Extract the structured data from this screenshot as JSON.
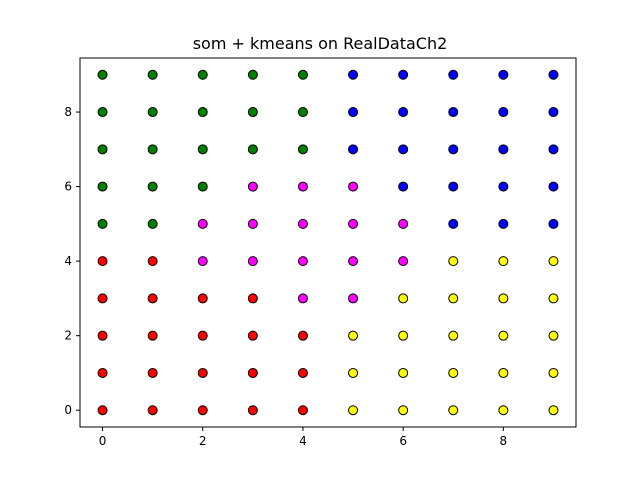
{
  "chart_data": {
    "type": "scatter",
    "title": "som + kmeans on RealDataCh2",
    "xlabel": "",
    "ylabel": "",
    "xlim": [
      -0.45,
      9.45
    ],
    "ylim": [
      -0.45,
      9.45
    ],
    "xticks": [
      0,
      2,
      4,
      6,
      8
    ],
    "yticks": [
      0,
      2,
      4,
      6,
      8
    ],
    "grid": false,
    "legend": "none",
    "colors": {
      "green": "#008000",
      "blue": "#0000ff",
      "magenta": "#ff00ff",
      "red": "#ff0000",
      "yellow": "#ffff00"
    },
    "grid_colors": [
      [
        "red",
        "red",
        "red",
        "red",
        "red",
        "yellow",
        "yellow",
        "yellow",
        "yellow",
        "yellow"
      ],
      [
        "red",
        "red",
        "red",
        "red",
        "red",
        "yellow",
        "yellow",
        "yellow",
        "yellow",
        "yellow"
      ],
      [
        "red",
        "red",
        "red",
        "red",
        "red",
        "yellow",
        "yellow",
        "yellow",
        "yellow",
        "yellow"
      ],
      [
        "red",
        "red",
        "red",
        "red",
        "magenta",
        "magenta",
        "yellow",
        "yellow",
        "yellow",
        "yellow"
      ],
      [
        "red",
        "red",
        "magenta",
        "magenta",
        "magenta",
        "magenta",
        "magenta",
        "yellow",
        "yellow",
        "yellow"
      ],
      [
        "green",
        "green",
        "magenta",
        "magenta",
        "magenta",
        "magenta",
        "magenta",
        "blue",
        "blue",
        "blue"
      ],
      [
        "green",
        "green",
        "green",
        "magenta",
        "magenta",
        "magenta",
        "blue",
        "blue",
        "blue",
        "blue"
      ],
      [
        "green",
        "green",
        "green",
        "green",
        "green",
        "blue",
        "blue",
        "blue",
        "blue",
        "blue"
      ],
      [
        "green",
        "green",
        "green",
        "green",
        "green",
        "blue",
        "blue",
        "blue",
        "blue",
        "blue"
      ],
      [
        "green",
        "green",
        "green",
        "green",
        "green",
        "blue",
        "blue",
        "blue",
        "blue",
        "blue"
      ]
    ]
  }
}
